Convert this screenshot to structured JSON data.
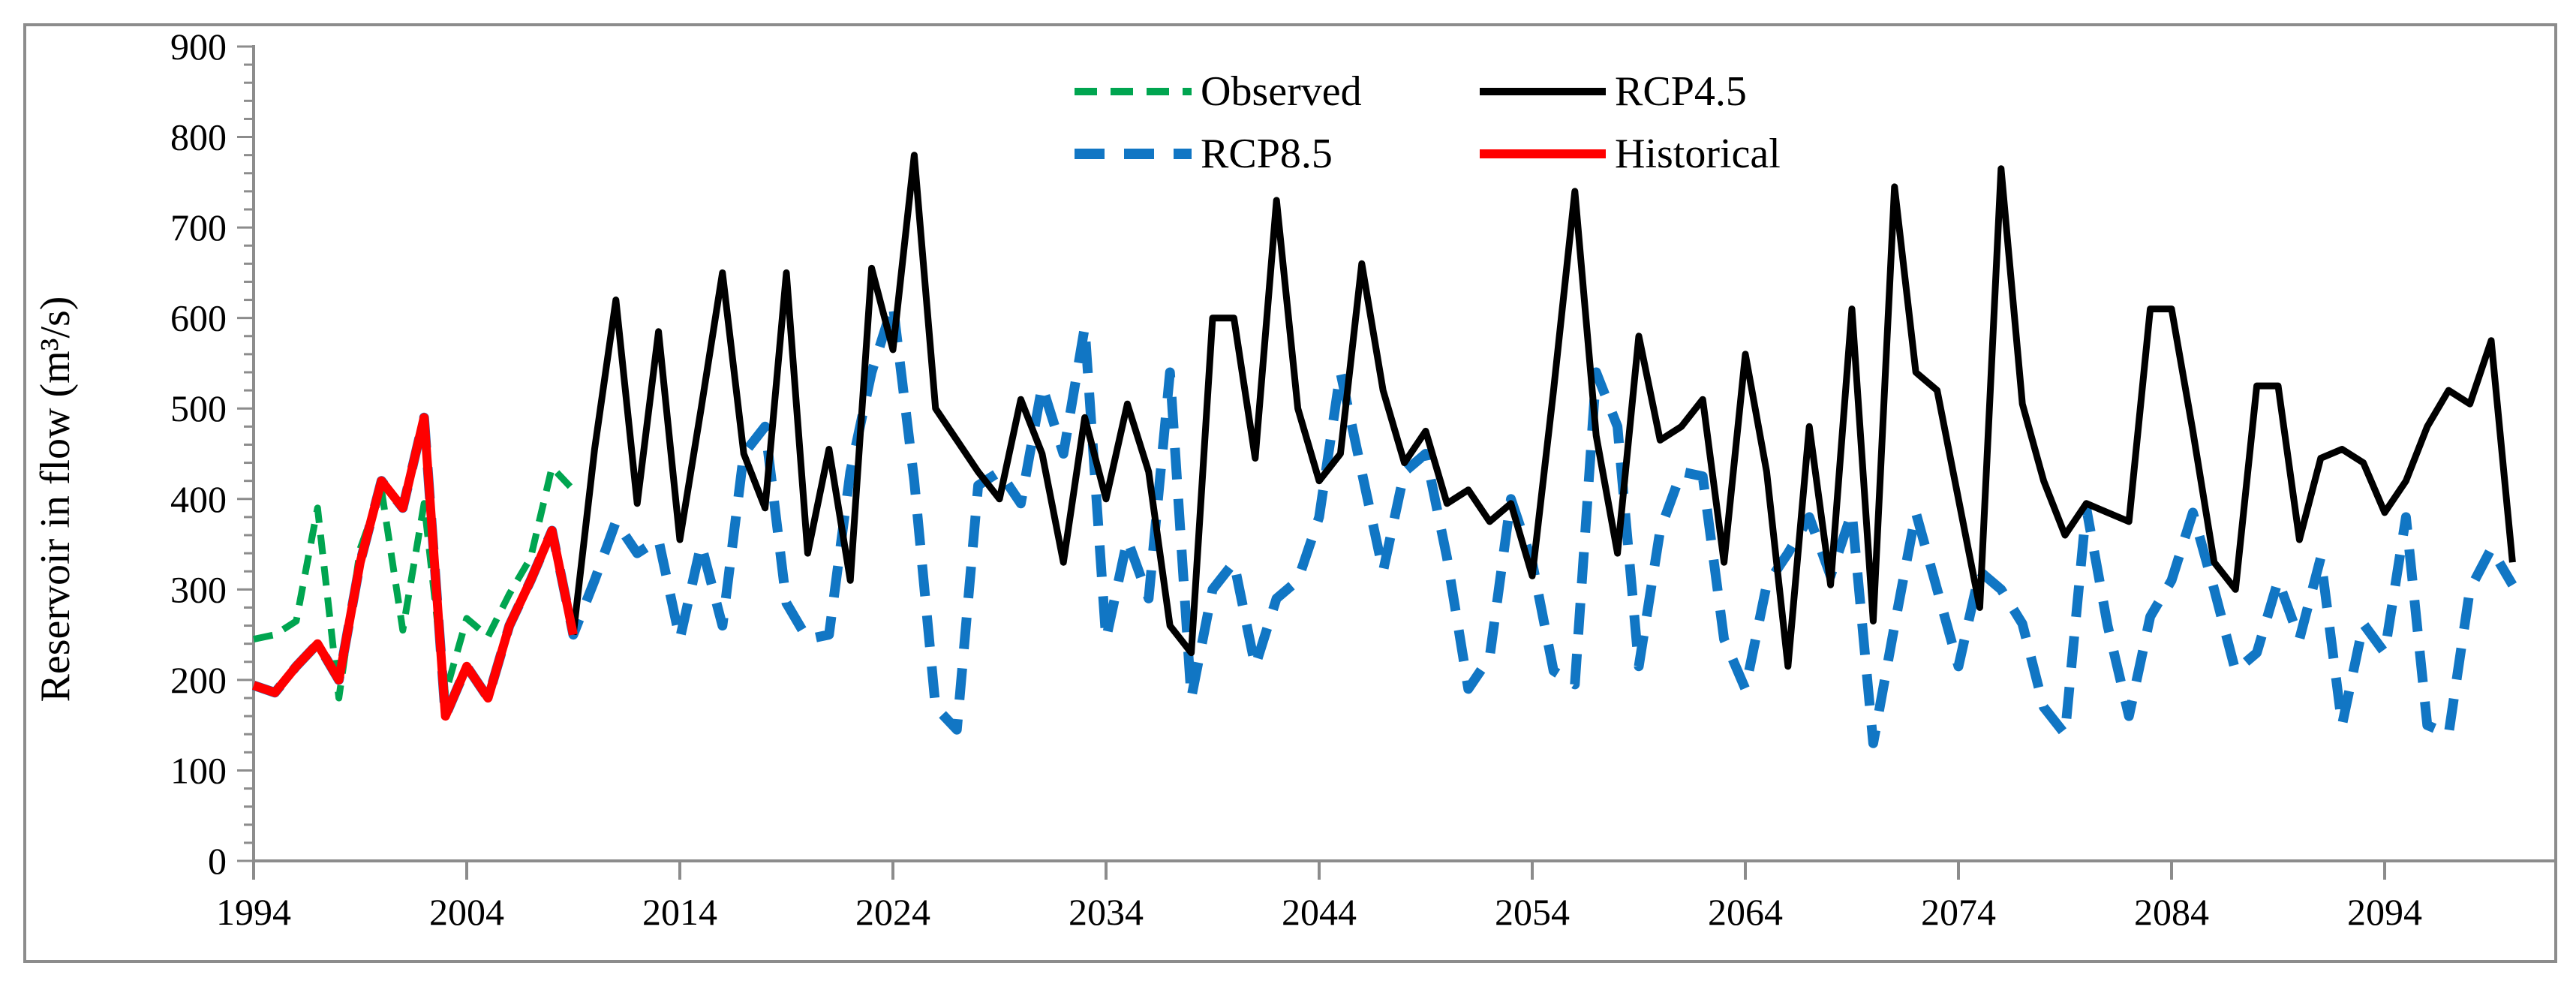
{
  "figure": {
    "type_label": "line chart",
    "background": "#ffffff",
    "frame_color": "#8C8C8C"
  },
  "colors": {
    "observed": "#00A550",
    "rcp45": "#000000",
    "rcp85": "#1176C4",
    "historical": "#FF0000",
    "axis": "#8C8C8C",
    "text": "#000000"
  },
  "legend": {
    "position": "top-center",
    "items": [
      {
        "label": "Observed",
        "series": "observed",
        "dashed": true
      },
      {
        "label": "RCP4.5",
        "series": "rcp45",
        "dashed": false
      },
      {
        "label": "RCP8.5",
        "series": "rcp85",
        "dashed": true
      },
      {
        "label": "Historical",
        "series": "historical",
        "dashed": false
      }
    ]
  },
  "chart_data": {
    "type": "line",
    "title": "",
    "xlabel": "",
    "ylabel": "Reservoir in flow (m³/s)",
    "grid": false,
    "y_axis": {
      "min": 0,
      "max": 900,
      "major_step": 100,
      "minor_step": 20,
      "ticks": [
        0,
        100,
        200,
        300,
        400,
        500,
        600,
        700,
        800,
        900
      ]
    },
    "x_axis": {
      "min": 1994,
      "max": 2100,
      "tick_years": [
        1994,
        2004,
        2014,
        2024,
        2034,
        2044,
        2054,
        2064,
        2074,
        2084,
        2094
      ]
    },
    "series": [
      {
        "name": "RCP8.5",
        "key": "rcp85",
        "color": "#1176C4",
        "dashed": true,
        "start_year": 1994,
        "note": "dashed blue; overlaps Historical 1994-2008 then continues to 2100",
        "values": [
          194,
          186,
          215,
          240,
          200,
          330,
          420,
          390,
          490,
          160,
          215,
          180,
          260,
          310,
          365,
          250,
          310,
          375,
          340,
          355,
          245,
          350,
          260,
          450,
          480,
          285,
          245,
          250,
          430,
          540,
          615,
          420,
          170,
          145,
          415,
          430,
          395,
          525,
          450,
          590,
          245,
          355,
          290,
          540,
          180,
          300,
          330,
          215,
          290,
          310,
          380,
          540,
          430,
          320,
          430,
          450,
          335,
          190,
          225,
          400,
          330,
          210,
          195,
          540,
          480,
          215,
          365,
          430,
          425,
          245,
          190,
          305,
          340,
          380,
          315,
          385,
          130,
          260,
          385,
          300,
          215,
          320,
          300,
          262,
          170,
          140,
          390,
          260,
          160,
          270,
          310,
          385,
          300,
          210,
          230,
          310,
          245,
          335,
          150,
          262,
          230,
          380,
          150,
          140,
          300,
          345,
          305
        ]
      },
      {
        "name": "RCP4.5",
        "key": "rcp45",
        "color": "#000000",
        "dashed": false,
        "start_year": 2009,
        "note": "solid black projection 2009-2100",
        "values": [
          250,
          455,
          620,
          395,
          585,
          355,
          500,
          650,
          450,
          390,
          650,
          340,
          455,
          310,
          655,
          565,
          780,
          500,
          465,
          430,
          400,
          510,
          450,
          330,
          490,
          400,
          505,
          430,
          260,
          230,
          600,
          600,
          445,
          730,
          500,
          420,
          450,
          660,
          520,
          440,
          475,
          395,
          410,
          375,
          395,
          315,
          520,
          740,
          470,
          340,
          580,
          465,
          480,
          510,
          330,
          560,
          430,
          215,
          480,
          305,
          610,
          265,
          745,
          540,
          520,
          400,
          280,
          765,
          505,
          420,
          360,
          395,
          385,
          375,
          610,
          610,
          475,
          330,
          300,
          525,
          525,
          355,
          445,
          455,
          440,
          385,
          420,
          480,
          520,
          505,
          575,
          330
        ]
      },
      {
        "name": "Observed",
        "key": "observed",
        "color": "#00A550",
        "dashed": true,
        "start_year": 1994,
        "note": "dashed green 1994-2009",
        "values": [
          245,
          250,
          265,
          390,
          180,
          345,
          410,
          255,
          395,
          185,
          268,
          248,
          295,
          335,
          435,
          410
        ]
      },
      {
        "name": "Historical",
        "key": "historical",
        "color": "#FF0000",
        "dashed": false,
        "start_year": 1994,
        "note": "solid red 1994-2009",
        "values": [
          194,
          186,
          215,
          240,
          200,
          330,
          420,
          390,
          490,
          160,
          215,
          180,
          260,
          310,
          365,
          250
        ]
      }
    ]
  }
}
